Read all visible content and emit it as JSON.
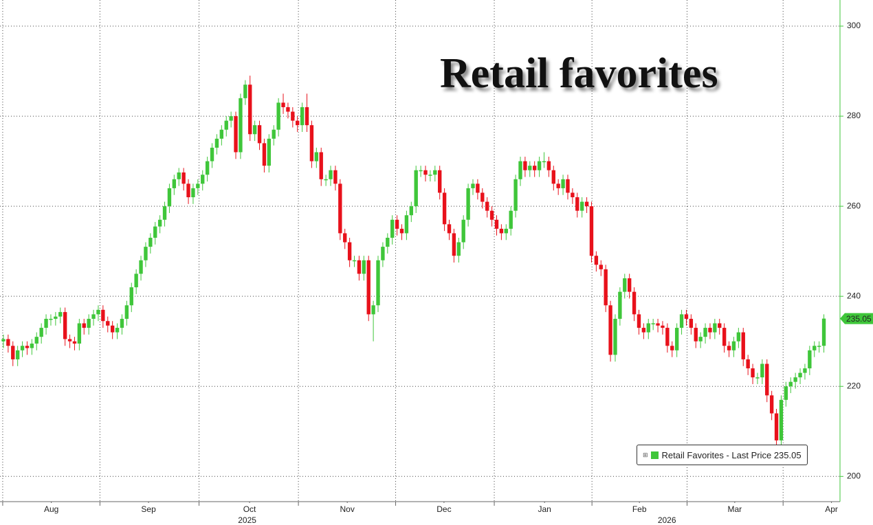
{
  "chart_data": {
    "type": "candlestick",
    "title": "Retail favorites",
    "up_color": "#3fc63a",
    "down_color": "#e8111b",
    "grid": true,
    "xlim": [
      -0.72,
      176.4
    ],
    "xticks": [
      {
        "value": 10.1,
        "label": "Aug"
      },
      {
        "value": 30.6,
        "label": "Sep"
      },
      {
        "value": 51.9,
        "label": "Oct"
      },
      {
        "value": 72.5,
        "label": "Nov"
      },
      {
        "value": 92.9,
        "label": "Dec"
      },
      {
        "value": 114.1,
        "label": "Jan"
      },
      {
        "value": 134.1,
        "label": "Feb"
      },
      {
        "value": 154.2,
        "label": "Mar"
      },
      {
        "value": 174.6,
        "label": "Apr"
      }
    ],
    "year_labels": [
      {
        "value": 51.4,
        "label": "2025"
      },
      {
        "value": 139.9,
        "label": "2026"
      }
    ],
    "ylim": [
      194.4,
      305.8
    ],
    "yticks": [
      200,
      220,
      240,
      260,
      280,
      300
    ],
    "last_price": 235.05,
    "series": [
      {
        "name": "Retail Favorites - Last Price 235.05",
        "open": [
          230,
          230.5,
          229,
          226,
          228,
          229,
          228.5,
          229.5,
          231,
          233,
          235,
          235,
          235.5,
          236.5,
          230.5,
          230,
          229.5,
          234,
          233,
          235,
          236,
          237,
          234.5,
          233.5,
          232,
          233,
          235,
          238,
          242,
          245,
          248,
          251,
          253,
          255.5,
          257,
          260,
          264,
          266,
          267.5,
          265,
          262,
          264,
          265,
          267,
          270,
          273,
          275,
          277,
          279,
          280,
          272,
          284,
          287,
          276,
          278,
          274,
          269,
          275,
          277,
          283,
          282,
          281,
          279,
          278,
          282,
          278,
          270,
          272,
          266,
          266,
          268,
          265,
          254,
          252,
          248,
          248,
          245,
          248,
          236,
          238,
          248,
          251,
          253,
          257,
          255,
          254,
          258,
          260,
          268,
          268,
          267,
          267,
          268,
          263,
          256,
          254,
          249,
          252,
          257,
          264,
          265,
          263,
          261,
          259,
          257,
          255,
          254,
          255,
          259,
          266,
          270,
          268,
          269,
          268,
          270,
          270,
          268,
          265,
          264,
          266,
          263,
          262,
          259,
          261,
          260,
          249,
          247,
          246,
          238,
          227,
          235,
          241,
          244,
          241,
          236,
          233,
          232,
          234,
          234,
          233.5,
          233,
          229,
          228,
          233,
          236,
          235,
          233,
          230,
          231,
          233,
          232,
          234,
          233,
          229,
          228,
          230,
          232,
          226,
          224,
          222,
          222,
          225,
          218,
          214,
          208,
          217,
          220,
          221,
          222,
          223,
          224,
          228,
          229,
          229
        ],
        "high": [
          231.5,
          231.5,
          230,
          229,
          230,
          230,
          230.5,
          232,
          234,
          236,
          236,
          236.5,
          237.5,
          237.5,
          231.5,
          231,
          235,
          235,
          236,
          237,
          238,
          238,
          235.5,
          234.5,
          234,
          236,
          239,
          243,
          246,
          249,
          252,
          254,
          256.5,
          258,
          261,
          265,
          267,
          268.5,
          268.5,
          266,
          265,
          266,
          268,
          271,
          274,
          276,
          278,
          280,
          281,
          281,
          285,
          288,
          289,
          279,
          279,
          275,
          276,
          278,
          284,
          285,
          283,
          282,
          280,
          283,
          285,
          279,
          273,
          273,
          267,
          269,
          269,
          266,
          255,
          253,
          249,
          249,
          249,
          249,
          239,
          249,
          252,
          254,
          258,
          258,
          256,
          259,
          261,
          269,
          269,
          269,
          268,
          269,
          269,
          264,
          257,
          255,
          253,
          258,
          265,
          266,
          266,
          264,
          262,
          260,
          258,
          256,
          256,
          260,
          267,
          271,
          271,
          270,
          270,
          271,
          272,
          271,
          269,
          266,
          267,
          267,
          264,
          263,
          262,
          262,
          261,
          250,
          248,
          247,
          239,
          236,
          242,
          245,
          245,
          242,
          237,
          234,
          235,
          235,
          235,
          234.5,
          234,
          230,
          234,
          237,
          237,
          236,
          234,
          232,
          234,
          234,
          235,
          235,
          234,
          230,
          231,
          233,
          233,
          227,
          225,
          223,
          226,
          226,
          219,
          215,
          218,
          221,
          222,
          223,
          224,
          225,
          229,
          230,
          230,
          236
        ],
        "low": [
          228.5,
          227.5,
          224.5,
          224.5,
          226.5,
          227,
          227,
          228,
          229.5,
          231.5,
          233.5,
          233.5,
          234,
          229,
          228.5,
          228,
          228,
          231.5,
          231.5,
          233.5,
          234.5,
          233,
          232,
          230.5,
          230.5,
          231.5,
          233.5,
          236.5,
          240.5,
          243.5,
          246.5,
          249.5,
          251.5,
          254,
          255.5,
          258.5,
          262.5,
          264.5,
          263.5,
          260.5,
          260.5,
          262.5,
          263.5,
          265.5,
          268.5,
          271.5,
          273.5,
          275.5,
          277.5,
          270.5,
          270.5,
          282.5,
          274.5,
          274.5,
          272.5,
          267.5,
          267.5,
          273.5,
          275.5,
          280.5,
          279.5,
          277.5,
          276.5,
          276.5,
          276.5,
          268.5,
          268.5,
          264.5,
          264.5,
          264.5,
          263.5,
          252.5,
          250.5,
          246.5,
          246.5,
          243.5,
          243.5,
          234.5,
          230,
          236.5,
          246.5,
          249.5,
          251.5,
          253.5,
          252.5,
          252.5,
          256.5,
          258.5,
          266.5,
          265.5,
          265.5,
          265.5,
          261.5,
          254.5,
          252.5,
          247.5,
          247.5,
          250.5,
          255.5,
          262.5,
          261.5,
          259.5,
          257.5,
          255.5,
          253.5,
          252.5,
          252.5,
          253.5,
          257.5,
          264.5,
          266.5,
          266.5,
          266.5,
          266.5,
          268.5,
          266.5,
          263.5,
          262.5,
          262.5,
          261.5,
          260.5,
          257.5,
          257.5,
          258.5,
          247.5,
          245.5,
          244.5,
          236.5,
          225.5,
          225.5,
          233.5,
          239.5,
          239.5,
          234.5,
          231.5,
          230.5,
          230.5,
          232.5,
          232,
          231.5,
          227.5,
          226.5,
          226.5,
          231.5,
          233.5,
          231.5,
          228.5,
          228.5,
          229.5,
          230.5,
          230.5,
          231.5,
          227.5,
          226.5,
          226.5,
          228.5,
          224.5,
          222.5,
          220.5,
          220.5,
          220.5,
          216.5,
          212.5,
          206.5,
          206.5,
          215.5,
          218.5,
          219.5,
          220.5,
          221.5,
          222.5,
          226.5,
          227.5,
          227.5
        ],
        "close": [
          230.5,
          229,
          226,
          228,
          229,
          228.5,
          229.5,
          231,
          233,
          235,
          235,
          235.5,
          236.5,
          230.5,
          230,
          229.5,
          234,
          233,
          235,
          236,
          237,
          234.5,
          233.5,
          232,
          233,
          235,
          238,
          242,
          245,
          248,
          251,
          253,
          255.5,
          257,
          260,
          264,
          266,
          267.5,
          265,
          262,
          264,
          265,
          267,
          270,
          273,
          275,
          277,
          279,
          280,
          272,
          284,
          287,
          276,
          278,
          274,
          269,
          275,
          277,
          283,
          282,
          281,
          279,
          278,
          282,
          278,
          270,
          272,
          266,
          266,
          268,
          265,
          254,
          252,
          248,
          248,
          245,
          248,
          236,
          238,
          248,
          251,
          253,
          257,
          255,
          254,
          258,
          260,
          268,
          268,
          267,
          267,
          268,
          263,
          256,
          254,
          249,
          252,
          257,
          264,
          265,
          263,
          261,
          259,
          257,
          255,
          254,
          255,
          259,
          266,
          270,
          268,
          269,
          268,
          270,
          270,
          268,
          265,
          264,
          266,
          263,
          262,
          259,
          261,
          260,
          249,
          247,
          246,
          238,
          227,
          235,
          241,
          244,
          241,
          236,
          233,
          232,
          234,
          234,
          233.5,
          233,
          229,
          228,
          233,
          236,
          235,
          233,
          230,
          231,
          233,
          232,
          234,
          233,
          229,
          228,
          230,
          232,
          226,
          224,
          222,
          222,
          225,
          218,
          214,
          208,
          217,
          220,
          221,
          222,
          223,
          224,
          228,
          229,
          229,
          235.05
        ]
      }
    ]
  }
}
